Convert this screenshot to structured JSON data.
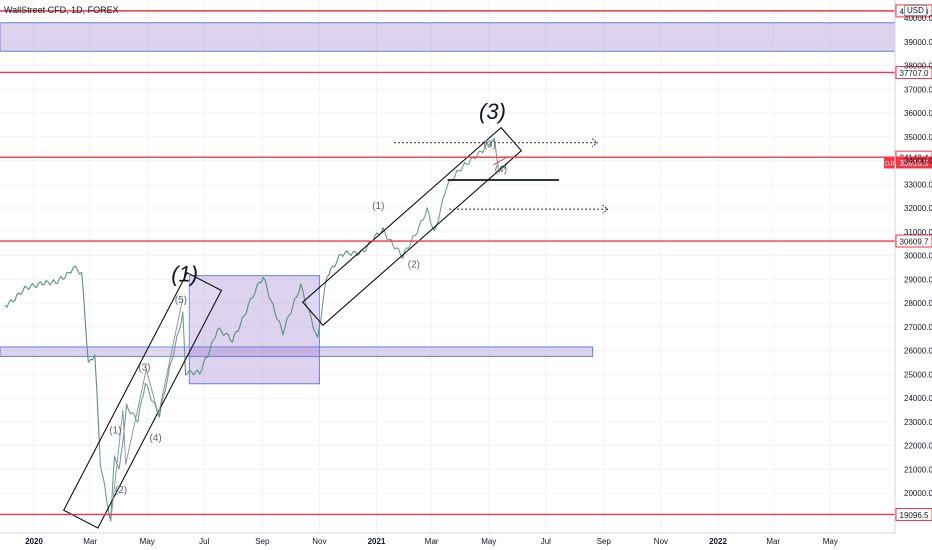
{
  "header": {
    "symbol": "WallStreet CFD, 1D, FOREX",
    "currency": "USD"
  },
  "chart_data": {
    "type": "line",
    "title": "WallStreet CFD, 1D, FOREX",
    "xlabel": "",
    "ylabel": "",
    "x_ticks": [
      "2020",
      "Mar",
      "May",
      "Jul",
      "Sep",
      "Nov",
      "2021",
      "Mar",
      "May",
      "Jul",
      "Sep",
      "Nov",
      "2022",
      "Mar",
      "May"
    ],
    "y_ticks": [
      20000,
      21000,
      22000,
      23000,
      24000,
      25000,
      26000,
      27000,
      28000,
      29000,
      30000,
      31000,
      32000,
      33000,
      34000,
      35000,
      36000,
      37000,
      38000,
      39000,
      40000
    ],
    "ylim": [
      19000,
      40300
    ],
    "log_scale": false,
    "grid": true,
    "series": [
      {
        "values": [
          {
            "x": "2019-12-01",
            "y": 27900
          },
          {
            "x": "2019-12-20",
            "y": 28500
          },
          {
            "x": "2020-01-10",
            "y": 28900
          },
          {
            "x": "2020-01-24",
            "y": 28800
          },
          {
            "x": "2020-02-07",
            "y": 29300
          },
          {
            "x": "2020-02-12",
            "y": 29550
          },
          {
            "x": "2020-02-21",
            "y": 29200
          },
          {
            "x": "2020-02-25",
            "y": 27100
          },
          {
            "x": "2020-02-28",
            "y": 25400
          },
          {
            "x": "2020-03-06",
            "y": 25900
          },
          {
            "x": "2020-03-12",
            "y": 21300
          },
          {
            "x": "2020-03-23",
            "y": 18700
          },
          {
            "x": "2020-03-27",
            "y": 21600
          },
          {
            "x": "2020-04-01",
            "y": 20900
          },
          {
            "x": "2020-04-09",
            "y": 23700
          },
          {
            "x": "2020-04-21",
            "y": 23000
          },
          {
            "x": "2020-04-29",
            "y": 24600
          },
          {
            "x": "2020-05-14",
            "y": 23300
          },
          {
            "x": "2020-05-27",
            "y": 25500
          },
          {
            "x": "2020-06-08",
            "y": 27600
          },
          {
            "x": "2020-06-11",
            "y": 25100
          },
          {
            "x": "2020-06-26",
            "y": 25000
          },
          {
            "x": "2020-07-15",
            "y": 26900
          },
          {
            "x": "2020-07-31",
            "y": 26400
          },
          {
            "x": "2020-08-17",
            "y": 27900
          },
          {
            "x": "2020-09-02",
            "y": 29100
          },
          {
            "x": "2020-09-23",
            "y": 26700
          },
          {
            "x": "2020-10-12",
            "y": 28800
          },
          {
            "x": "2020-10-30",
            "y": 26400
          },
          {
            "x": "2020-11-09",
            "y": 29200
          },
          {
            "x": "2020-11-24",
            "y": 30000
          },
          {
            "x": "2020-12-18",
            "y": 30200
          },
          {
            "x": "2021-01-08",
            "y": 31100
          },
          {
            "x": "2021-01-29",
            "y": 29900
          },
          {
            "x": "2021-02-24",
            "y": 31900
          },
          {
            "x": "2021-03-04",
            "y": 30900
          },
          {
            "x": "2021-03-17",
            "y": 33000
          },
          {
            "x": "2021-04-16",
            "y": 34200
          },
          {
            "x": "2021-05-07",
            "y": 34800
          },
          {
            "x": "2021-05-12",
            "y": 33600
          },
          {
            "x": "2021-05-20",
            "y": 33900
          }
        ]
      }
    ],
    "horizontal_levels": [
      {
        "y": 40300,
        "label": "40300.0"
      },
      {
        "y": 37707,
        "label": "37707.0"
      },
      {
        "y": 34140.4,
        "label": "34140.4"
      },
      {
        "y": 30609.7,
        "label": "30609.7"
      },
      {
        "y": 19096.5,
        "label": "19096.5"
      }
    ],
    "last_price": {
      "y": 33916.5,
      "symbol": "DJI",
      "label": "33916.5"
    },
    "zones": [
      {
        "x1": "2019-11-20",
        "x2": "2022-11-01",
        "y1": 38600,
        "y2": 39800
      },
      {
        "x1": "2019-11-20",
        "x2": "2021-08-20",
        "y1": 25750,
        "y2": 26150
      },
      {
        "x1": "2020-06-15",
        "x2": "2020-11-01",
        "y1": 24600,
        "y2": 29150
      }
    ],
    "wave_labels": [
      {
        "x": "2020-06-10",
        "y": 28900,
        "text": "(1)",
        "major": true
      },
      {
        "x": "2021-05-05",
        "y": 35750,
        "text": "(3)",
        "major": true
      },
      {
        "x": "2020-03-28",
        "y": 22500,
        "text": "(1)",
        "major": false
      },
      {
        "x": "2020-04-03",
        "y": 20000,
        "text": "(2)",
        "major": false
      },
      {
        "x": "2020-04-28",
        "y": 25150,
        "text": "(3)",
        "major": false
      },
      {
        "x": "2020-05-10",
        "y": 22200,
        "text": "(4)",
        "major": false
      },
      {
        "x": "2020-06-06",
        "y": 28000,
        "text": "(5)",
        "major": false
      },
      {
        "x": "2021-01-03",
        "y": 31950,
        "text": "(1)",
        "major": false
      },
      {
        "x": "2021-02-10",
        "y": 29500,
        "text": "(2)",
        "major": false
      },
      {
        "x": "2021-05-02",
        "y": 34550,
        "text": "(3)",
        "major": false
      },
      {
        "x": "2021-05-14",
        "y": 33500,
        "text": "(4)",
        "major": false
      }
    ],
    "channels": [
      {
        "x1": "2020-02-20",
        "y1": 18900,
        "x2": "2020-07-01",
        "y2": 28900,
        "width": 2950
      },
      {
        "x1": "2020-10-25",
        "y1": 27550,
        "x2": "2021-05-25",
        "y2": 34900,
        "width": 2350
      }
    ],
    "dotted_arrows": [
      {
        "x1": "2021-01-20",
        "x2": "2021-08-25",
        "y": 34750
      },
      {
        "x1": "2021-03-20",
        "x2": "2021-09-05",
        "y": 31950
      }
    ],
    "target_line": {
      "x1": "2021-03-18",
      "x2": "2021-07-15",
      "y": 33180
    }
  }
}
